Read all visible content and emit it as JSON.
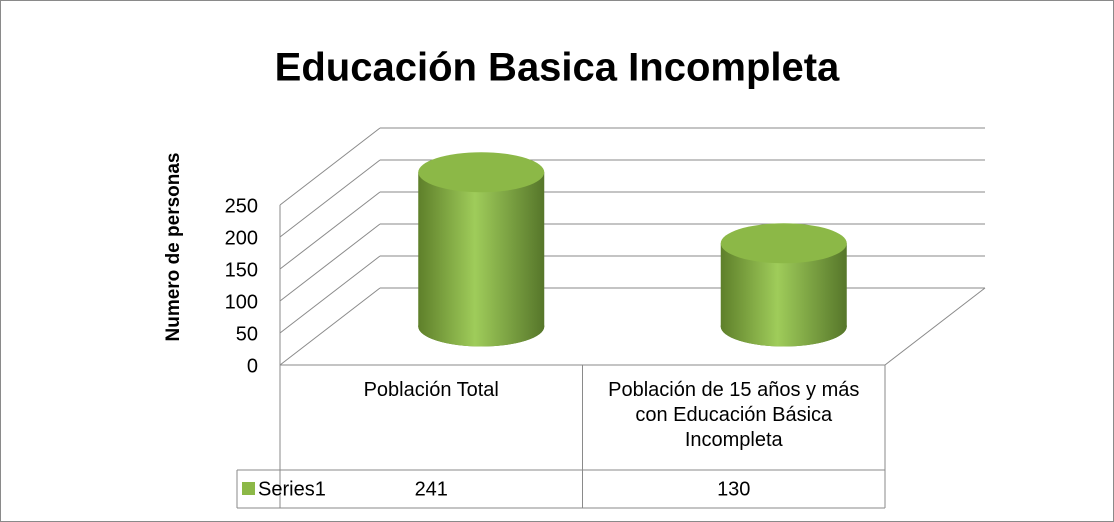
{
  "chart_data": {
    "type": "bar",
    "title": "Educación Basica Incompleta",
    "ylabel": "Numero de personas",
    "categories": [
      "Población Total",
      "Población de 15 años y más con Educación Básica Incompleta"
    ],
    "series": [
      {
        "name": "Series1",
        "color": "#8cb847",
        "values": [
          241,
          130
        ]
      }
    ],
    "ylim": [
      0,
      250
    ],
    "yticks": [
      0,
      50,
      100,
      150,
      200,
      250
    ],
    "grid": true
  }
}
